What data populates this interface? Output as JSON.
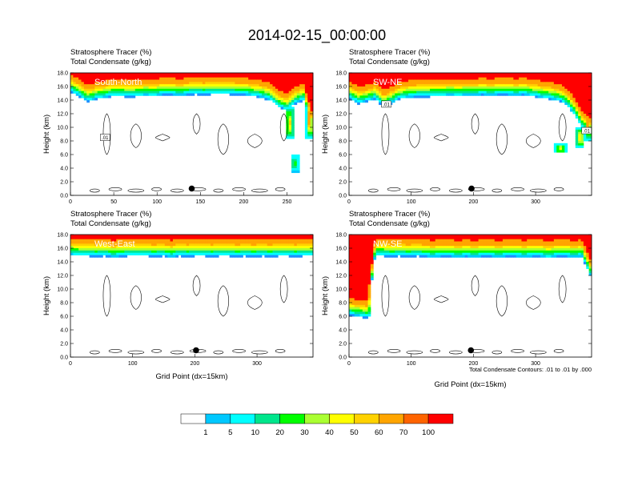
{
  "figure": {
    "title": "2014-02-15_00:00:00",
    "contour_note": "Total Condensate Contours: .01 to .01 by .000"
  },
  "colorbar": {
    "colors": [
      "#ffffff",
      "#1e90ff",
      "#00c8ff",
      "#00ffff",
      "#00e68c",
      "#00ff00",
      "#aaff32",
      "#ffff00",
      "#ffd200",
      "#ffa500",
      "#ff6400",
      "#ff0000"
    ],
    "labels": [
      "1",
      "5",
      "10",
      "20",
      "30",
      "40",
      "50",
      "60",
      "70",
      "100"
    ]
  },
  "chart_data": [
    {
      "type": "heatmap",
      "region_label": "South-North",
      "title_lines": [
        "Stratosphere Tracer   (%)",
        "Total Condensate   (g/kg)"
      ],
      "ylabel": "Height (km)",
      "xlabel": "",
      "xlim": [
        0,
        280
      ],
      "ylim": [
        0,
        18
      ],
      "x_ticks": [
        "0",
        "50",
        "100",
        "150",
        "200",
        "250"
      ],
      "y_ticks": [
        "0.0",
        "2.0",
        "4.0",
        "6.0",
        "8.0",
        "10.0",
        "12.0",
        "14.0",
        "16.0",
        "18.0"
      ],
      "marker": {
        "x": 140,
        "y": 1.0
      },
      "contour_labels": [
        {
          "text": ".01",
          "x": 40,
          "y": 8.4
        }
      ],
      "tracer_base_km": [
        15.2,
        14.5,
        13.8,
        14.2,
        14.4,
        14.6,
        14.6,
        14.5,
        14.6,
        14.7,
        14.6,
        14.8,
        14.8,
        14.7,
        14.8,
        14.9,
        14.8,
        14.9,
        14.9,
        14.9,
        14.8,
        14.8,
        14.6,
        14.4,
        14.0,
        13.0,
        12.5,
        13.5,
        14.0,
        10.0
      ],
      "plumes": [
        {
          "x": 253,
          "y_from": 8.2,
          "y_to": 13.0,
          "w": 9,
          "peak": 70
        },
        {
          "x": 259,
          "y_from": 3.5,
          "y_to": 6.0,
          "w": 10,
          "peak": 40
        },
        {
          "x": 276,
          "y_from": 8.5,
          "y_to": 14.0,
          "w": 8,
          "peak": 100
        }
      ]
    },
    {
      "type": "heatmap",
      "region_label": "SW-NE",
      "title_lines": [
        "Stratosphere Tracer   (%)",
        "Total Condensate   (g/kg)"
      ],
      "ylabel": "Height (km)",
      "xlabel": "",
      "xlim": [
        0,
        390
      ],
      "ylim": [
        0,
        18
      ],
      "x_ticks": [
        "0",
        "100",
        "200",
        "300"
      ],
      "y_ticks": [
        "0.0",
        "2.0",
        "4.0",
        "6.0",
        "8.0",
        "10.0",
        "12.0",
        "14.0",
        "16.0",
        "18.0"
      ],
      "marker": {
        "x": 197,
        "y": 1.0
      },
      "contour_labels": [
        {
          "text": ".01",
          "x": 60,
          "y": 13.3
        },
        {
          "text": ".01",
          "x": 382,
          "y": 9.4
        }
      ],
      "tracer_base_km": [
        14.2,
        13.5,
        13.8,
        14.2,
        13.0,
        13.6,
        14.2,
        14.4,
        14.5,
        14.5,
        14.6,
        14.6,
        14.7,
        14.6,
        14.7,
        14.7,
        14.8,
        14.7,
        14.8,
        14.8,
        14.7,
        14.8,
        14.6,
        14.4,
        14.2,
        14.0,
        13.5,
        12.0,
        10.0,
        9.0
      ],
      "plumes": [
        {
          "x": 340,
          "y_from": 6.2,
          "y_to": 7.6,
          "w": 20,
          "peak": 60
        },
        {
          "x": 372,
          "y_from": 7.0,
          "y_to": 10.0,
          "w": 14,
          "peak": 70
        },
        {
          "x": 384,
          "y_from": 8.0,
          "y_to": 14.0,
          "w": 10,
          "peak": 100
        }
      ]
    },
    {
      "type": "heatmap",
      "region_label": "West-East",
      "title_lines": [
        "Stratosphere Tracer   (%)",
        "Total Condensate   (g/kg)"
      ],
      "ylabel": "Height (km)",
      "xlabel": "Grid Point (dx=15km)",
      "xlim": [
        0,
        390
      ],
      "ylim": [
        0,
        18
      ],
      "x_ticks": [
        "0",
        "100",
        "200",
        "300"
      ],
      "y_ticks": [
        "0.0",
        "2.0",
        "4.0",
        "6.0",
        "8.0",
        "10.0",
        "12.0",
        "14.0",
        "16.0",
        "18.0"
      ],
      "marker": {
        "x": 202,
        "y": 1.0
      },
      "contour_labels": [],
      "tracer_base_km": [
        15.0,
        14.9,
        14.9,
        14.8,
        14.9,
        14.7,
        14.8,
        14.9,
        14.9,
        14.9,
        14.8,
        14.9,
        14.7,
        14.9,
        14.8,
        14.9,
        14.9,
        14.8,
        14.9,
        14.9,
        14.8,
        14.9,
        14.8,
        14.9,
        14.8,
        14.9,
        14.9,
        14.8,
        14.9,
        14.9
      ],
      "plumes": []
    },
    {
      "type": "heatmap",
      "region_label": "NW-SE",
      "title_lines": [
        "Stratosphere Tracer   (%)",
        "Total Condensate   (g/kg)"
      ],
      "ylabel": "Height (km)",
      "xlabel": "Grid Point (dx=15km)",
      "xlim": [
        0,
        390
      ],
      "ylim": [
        0,
        18
      ],
      "x_ticks": [
        "0",
        "100",
        "200",
        "300"
      ],
      "y_ticks": [
        "0.0",
        "2.0",
        "4.0",
        "6.0",
        "8.0",
        "10.0",
        "12.0",
        "14.0",
        "16.0",
        "18.0"
      ],
      "marker": {
        "x": 196,
        "y": 1.0
      },
      "contour_labels": [],
      "tracer_base_km": [
        6.2,
        6.0,
        5.8,
        15.0,
        14.9,
        14.8,
        14.9,
        14.8,
        14.9,
        14.8,
        14.7,
        14.8,
        14.8,
        14.7,
        14.8,
        14.7,
        14.8,
        14.8,
        14.7,
        14.8,
        14.8,
        14.7,
        14.8,
        14.8,
        14.6,
        14.8,
        14.8,
        14.7,
        14.8,
        12.0
      ],
      "plumes": [
        {
          "x": 32,
          "y_from": 6.0,
          "y_to": 14.5,
          "w": 6,
          "peak": 100
        }
      ]
    }
  ]
}
